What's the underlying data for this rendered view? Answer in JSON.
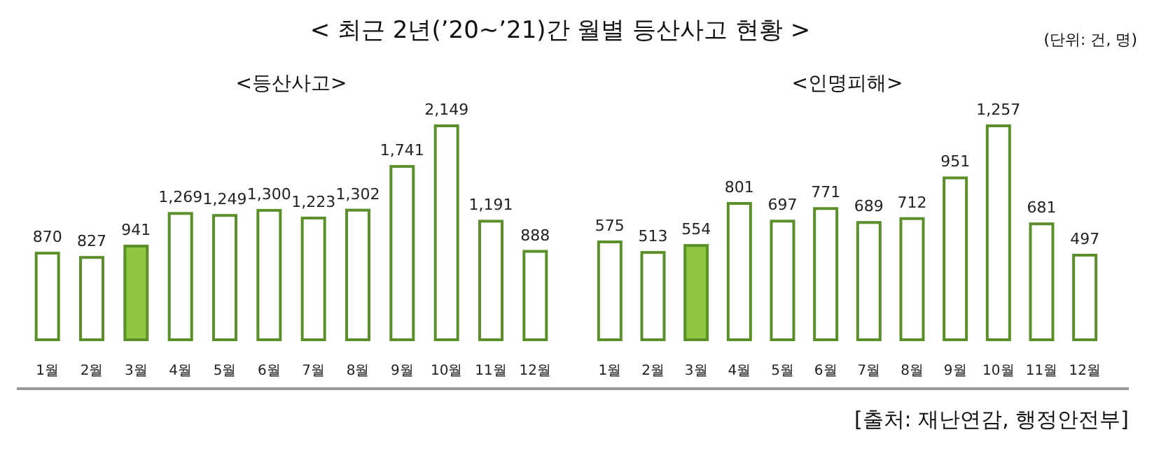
{
  "chart_data": [
    {
      "type": "bar",
      "title": "< 최근 2년(’20~’21)간 월별 등산사고 현황 >",
      "subtitle": "<등산사고>",
      "categories": [
        "1월",
        "2월",
        "3월",
        "4월",
        "5월",
        "6월",
        "7월",
        "8월",
        "9월",
        "10월",
        "11월",
        "12월"
      ],
      "series": [
        {
          "color": "#5a8f29",
          "colors": [
            "#ffffff",
            "#ffffff",
            "#8dc63f",
            "#ffffff",
            "#ffffff",
            "#ffffff",
            "#ffffff",
            "#ffffff",
            "#ffffff",
            "#ffffff",
            "#ffffff",
            "#ffffff"
          ],
          "values": [
            870,
            827,
            941,
            1269,
            1249,
            1300,
            1223,
            1302,
            1741,
            2149,
            1191,
            888
          ],
          "value_labels": [
            "870",
            "827",
            "941",
            "1,269",
            "1,249",
            "1,300",
            "1,223",
            "1,302",
            "1,741",
            "2,149",
            "1,191",
            "888"
          ]
        }
      ]
    },
    {
      "type": "bar",
      "subtitle": "<인명피해>",
      "categories": [
        "1월",
        "2월",
        "3월",
        "4월",
        "5월",
        "6월",
        "7월",
        "8월",
        "9월",
        "10월",
        "11월",
        "12월"
      ],
      "series": [
        {
          "color": "#5a8f29",
          "colors": [
            "#ffffff",
            "#ffffff",
            "#8dc63f",
            "#ffffff",
            "#ffffff",
            "#ffffff",
            "#ffffff",
            "#ffffff",
            "#ffffff",
            "#ffffff",
            "#ffffff",
            "#ffffff"
          ],
          "values": [
            575,
            513,
            554,
            801,
            697,
            771,
            689,
            712,
            951,
            1257,
            681,
            497
          ],
          "value_labels": [
            "575",
            "513",
            "554",
            "801",
            "697",
            "771",
            "689",
            "712",
            "951",
            "1,257",
            "681",
            "497"
          ]
        }
      ],
      "annotations": [
        "(단위: 건, 명)",
        "[출처: 재난연감, 행정안전부]"
      ]
    }
  ]
}
